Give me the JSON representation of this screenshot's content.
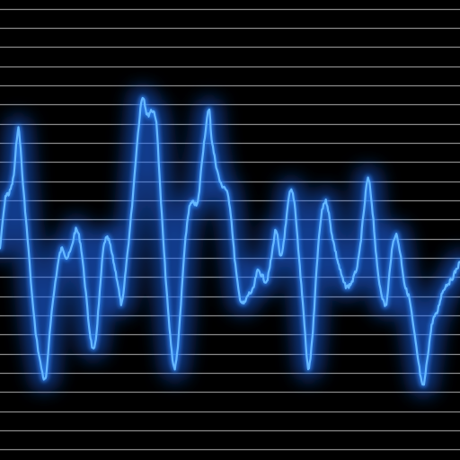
{
  "scene": {
    "background_color": "#000000",
    "grid_line_color": "#8a8a8a",
    "glow_color": "#1e6cff",
    "wave_color": "#2f8cff",
    "wave_core_color": "#66b8ff",
    "wave_points": [
      [
        0.0,
        0.54
      ],
      [
        0.012,
        0.43
      ],
      [
        0.02,
        0.42
      ],
      [
        0.03,
        0.38
      ],
      [
        0.04,
        0.28
      ],
      [
        0.05,
        0.4
      ],
      [
        0.06,
        0.52
      ],
      [
        0.075,
        0.7
      ],
      [
        0.09,
        0.8
      ],
      [
        0.1,
        0.82
      ],
      [
        0.11,
        0.7
      ],
      [
        0.125,
        0.58
      ],
      [
        0.135,
        0.54
      ],
      [
        0.145,
        0.56
      ],
      [
        0.155,
        0.54
      ],
      [
        0.165,
        0.5
      ],
      [
        0.175,
        0.53
      ],
      [
        0.185,
        0.62
      ],
      [
        0.195,
        0.72
      ],
      [
        0.205,
        0.76
      ],
      [
        0.215,
        0.66
      ],
      [
        0.225,
        0.54
      ],
      [
        0.235,
        0.52
      ],
      [
        0.245,
        0.56
      ],
      [
        0.255,
        0.61
      ],
      [
        0.265,
        0.66
      ],
      [
        0.275,
        0.57
      ],
      [
        0.285,
        0.47
      ],
      [
        0.3,
        0.29
      ],
      [
        0.31,
        0.21
      ],
      [
        0.32,
        0.25
      ],
      [
        0.33,
        0.24
      ],
      [
        0.34,
        0.27
      ],
      [
        0.35,
        0.44
      ],
      [
        0.36,
        0.6
      ],
      [
        0.37,
        0.73
      ],
      [
        0.38,
        0.8
      ],
      [
        0.39,
        0.71
      ],
      [
        0.4,
        0.56
      ],
      [
        0.41,
        0.46
      ],
      [
        0.42,
        0.44
      ],
      [
        0.43,
        0.44
      ],
      [
        0.44,
        0.34
      ],
      [
        0.45,
        0.26
      ],
      [
        0.455,
        0.24
      ],
      [
        0.46,
        0.3
      ],
      [
        0.47,
        0.36
      ],
      [
        0.48,
        0.4
      ],
      [
        0.49,
        0.41
      ],
      [
        0.5,
        0.45
      ],
      [
        0.51,
        0.56
      ],
      [
        0.52,
        0.64
      ],
      [
        0.53,
        0.66
      ],
      [
        0.54,
        0.64
      ],
      [
        0.55,
        0.63
      ],
      [
        0.56,
        0.59
      ],
      [
        0.57,
        0.6
      ],
      [
        0.58,
        0.61
      ],
      [
        0.59,
        0.56
      ],
      [
        0.6,
        0.5
      ],
      [
        0.61,
        0.56
      ],
      [
        0.62,
        0.5
      ],
      [
        0.63,
        0.42
      ],
      [
        0.64,
        0.44
      ],
      [
        0.65,
        0.56
      ],
      [
        0.66,
        0.68
      ],
      [
        0.67,
        0.8
      ],
      [
        0.68,
        0.72
      ],
      [
        0.69,
        0.56
      ],
      [
        0.7,
        0.46
      ],
      [
        0.71,
        0.44
      ],
      [
        0.72,
        0.5
      ],
      [
        0.73,
        0.55
      ],
      [
        0.74,
        0.59
      ],
      [
        0.75,
        0.62
      ],
      [
        0.76,
        0.62
      ],
      [
        0.77,
        0.6
      ],
      [
        0.78,
        0.56
      ],
      [
        0.79,
        0.47
      ],
      [
        0.8,
        0.39
      ],
      [
        0.81,
        0.46
      ],
      [
        0.82,
        0.58
      ],
      [
        0.83,
        0.64
      ],
      [
        0.84,
        0.66
      ],
      [
        0.85,
        0.56
      ],
      [
        0.86,
        0.51
      ],
      [
        0.87,
        0.55
      ],
      [
        0.88,
        0.62
      ],
      [
        0.89,
        0.65
      ],
      [
        0.9,
        0.72
      ],
      [
        0.91,
        0.79
      ],
      [
        0.92,
        0.84
      ],
      [
        0.93,
        0.77
      ],
      [
        0.94,
        0.7
      ],
      [
        0.95,
        0.68
      ],
      [
        0.96,
        0.64
      ],
      [
        0.97,
        0.62
      ],
      [
        0.98,
        0.61
      ],
      [
        0.99,
        0.59
      ],
      [
        1.0,
        0.57
      ]
    ],
    "grid_line_count": 24
  }
}
